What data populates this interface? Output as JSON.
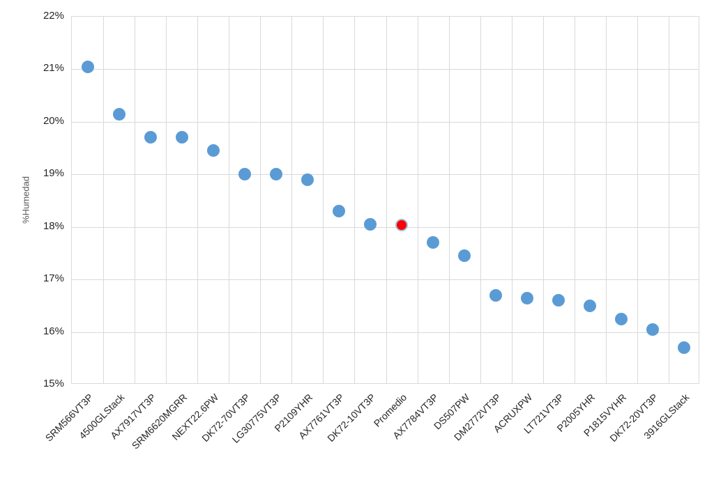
{
  "chart_data": {
    "type": "scatter",
    "title": "",
    "xlabel": "",
    "ylabel": "%Humedad",
    "ylim": [
      15,
      22
    ],
    "ytick_step": 1,
    "yticks": [
      "22%",
      "21%",
      "20%",
      "19%",
      "18%",
      "17%",
      "16%",
      "15%"
    ],
    "grid": "on",
    "legend": "none",
    "categories": [
      "SRM566VT3P",
      "4500GLStack",
      "AX7917VT3P",
      "SRM6620MGRR",
      "NEXT22.6PW",
      "DK72-70VT3P",
      "LG30775VT3P",
      "P2109YHR",
      "AX7761VT3P",
      "DK72-10VT3P",
      "Promedio",
      "AX7784VT3P",
      "DS507PW",
      "DM2772VT3P",
      "ACRUXPW",
      "LT721VT3P",
      "P2005YHR",
      "P1815VYHR",
      "DK72-20VT3P",
      "3916GLStack"
    ],
    "values": [
      21.05,
      20.15,
      19.7,
      19.7,
      19.45,
      19.0,
      19.0,
      18.9,
      18.3,
      18.05,
      18.04,
      17.7,
      17.45,
      16.7,
      16.65,
      16.6,
      16.5,
      16.25,
      16.05,
      15.7
    ],
    "highlight_category": "Promedio",
    "highlight_index": 10,
    "colors": {
      "point_fill": "#5b9bd5",
      "highlight_fill": "#ff0000",
      "highlight_border": "#9dc3e6",
      "gridline": "#d9d9d9",
      "tick_text": "#262626",
      "axis_title_text": "#595959",
      "background": "#ffffff"
    }
  }
}
